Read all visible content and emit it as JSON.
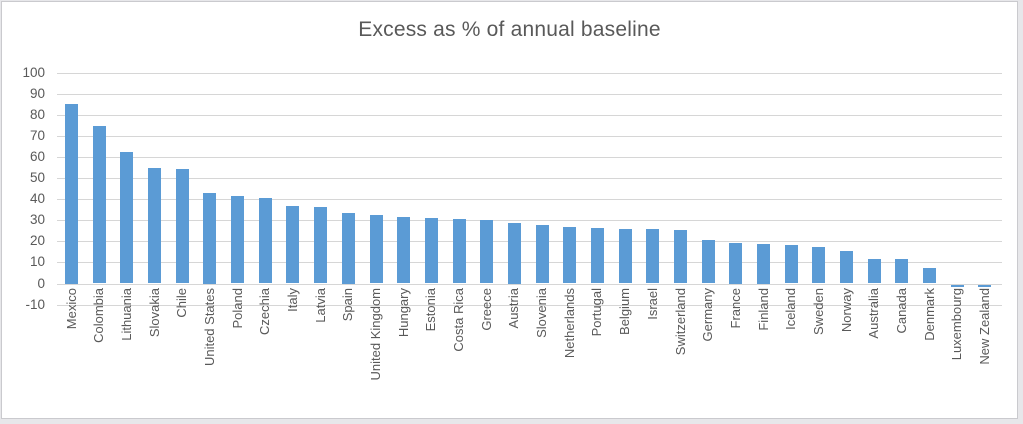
{
  "chart_data": {
    "type": "bar",
    "title": "Excess as % of annual baseline",
    "categories": [
      "Mexico",
      "Colombia",
      "Lithuania",
      "Slovakia",
      "Chile",
      "United States",
      "Poland",
      "Czechia",
      "Italy",
      "Latvia",
      "Spain",
      "United Kingdom",
      "Hungary",
      "Estonia",
      "Costa Rica",
      "Greece",
      "Austria",
      "Slovenia",
      "Netherlands",
      "Portugal",
      "Belgium",
      "Israel",
      "Switzerland",
      "Germany",
      "France",
      "Finland",
      "Iceland",
      "Sweden",
      "Norway",
      "Australia",
      "Canada",
      "Denmark",
      "Luxembourg",
      "New Zealand"
    ],
    "values": [
      85.5,
      75,
      62.5,
      55,
      54.5,
      43,
      41.5,
      40.5,
      37,
      36.5,
      33.5,
      32.5,
      31.5,
      31,
      30.5,
      30,
      29,
      28,
      27,
      26.5,
      26,
      26,
      25.5,
      20.5,
      19.5,
      19,
      18.5,
      17.5,
      15.5,
      11.5,
      11.5,
      7.5,
      -1,
      -1
    ],
    "xlabel": "",
    "ylabel": "",
    "ylim": [
      -10,
      100
    ],
    "yticks": [
      100,
      90,
      80,
      70,
      60,
      50,
      40,
      30,
      20,
      10,
      0,
      -10
    ],
    "grid": "horizontal",
    "legend": "none",
    "colors": {
      "bar": "#5B9BD5",
      "gridline": "#D6D6D6",
      "text": "#595959",
      "frame_border": "#CACACE",
      "background": "#FFFFFF",
      "outer_background": "#E7E7EA"
    }
  }
}
